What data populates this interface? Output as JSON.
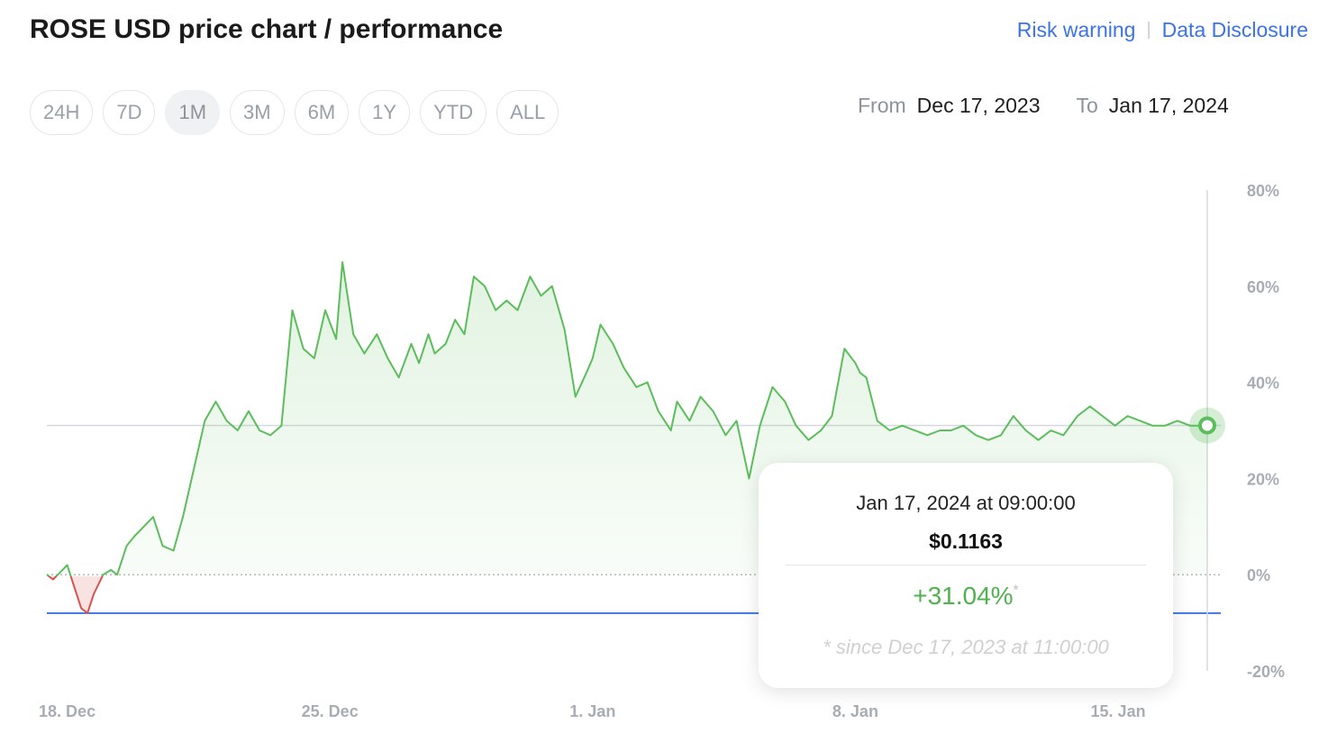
{
  "header": {
    "title": "ROSE USD price chart / performance",
    "risk_link": "Risk warning",
    "separator": "|",
    "disclosure_link": "Data Disclosure"
  },
  "ranges": [
    {
      "label": "24H",
      "active": false
    },
    {
      "label": "7D",
      "active": false
    },
    {
      "label": "1M",
      "active": true
    },
    {
      "label": "3M",
      "active": false
    },
    {
      "label": "6M",
      "active": false
    },
    {
      "label": "1Y",
      "active": false
    },
    {
      "label": "YTD",
      "active": false
    },
    {
      "label": "ALL",
      "active": false
    }
  ],
  "daterange": {
    "from_label": "From",
    "from_value": "Dec 17, 2023",
    "to_label": "To",
    "to_value": "Jan 17, 2024"
  },
  "tooltip": {
    "date": "Jan 17, 2024 at 09:00:00",
    "price": "$0.1163",
    "change": "+31.04%",
    "asterisk": "*",
    "since": "* since Dec 17, 2023 at 11:00:00"
  },
  "colors": {
    "up": "#5cbd5c",
    "down": "#d9534f",
    "up_fill": "#e9f6e9",
    "down_fill": "#f7dcdb",
    "low_line": "#3b73e8",
    "grid": "#d5d8dc",
    "axis_text": "#a8adb3",
    "link": "#3b73e8"
  },
  "chart_data": {
    "type": "line",
    "title": "",
    "xlabel": "",
    "ylabel": "",
    "x_start": "2023-12-17 11:00",
    "x_end": "2024-01-17 09:00",
    "x_ticks": [
      {
        "label": "18. Dec",
        "date": "2023-12-18"
      },
      {
        "label": "25. Dec",
        "date": "2023-12-25"
      },
      {
        "label": "1. Jan",
        "date": "2024-01-01"
      },
      {
        "label": "8. Jan",
        "date": "2024-01-08"
      },
      {
        "label": "15. Jan",
        "date": "2024-01-15"
      }
    ],
    "y_ticks": [
      {
        "label": "80%",
        "value": 80
      },
      {
        "label": "60%",
        "value": 60
      },
      {
        "label": "40%",
        "value": 40
      },
      {
        "label": "20%",
        "value": 20
      },
      {
        "label": "0%",
        "value": 0
      },
      {
        "label": "-20%",
        "value": -20
      }
    ],
    "ylim": [
      -20,
      80
    ],
    "current_level": 31.04,
    "low_level": -8,
    "series": [
      {
        "x": [
          "2023-12-17 11:00",
          "2023-12-17 15:00",
          "2023-12-17 21:00",
          "2023-12-18 00:00",
          "2023-12-18 05:00",
          "2023-12-18 09:00",
          "2023-12-18 13:00",
          "2023-12-18 17:00",
          "2023-12-18 23:00",
          "2023-12-19 04:00",
          "2023-12-19 08:00",
          "2023-12-19 14:00",
          "2023-12-19 19:00",
          "2023-12-20 01:00",
          "2023-12-20 07:00",
          "2023-12-20 13:00",
          "2023-12-20 20:00",
          "2023-12-21 02:00",
          "2023-12-21 09:00",
          "2023-12-21 16:00",
          "2023-12-21 23:00",
          "2023-12-22 06:00",
          "2023-12-22 13:00",
          "2023-12-22 20:00",
          "2023-12-23 03:00",
          "2023-12-23 10:00",
          "2023-12-23 17:00",
          "2023-12-24 00:00",
          "2023-12-24 07:00",
          "2023-12-24 14:00",
          "2023-12-24 21:00",
          "2023-12-25 04:00",
          "2023-12-25 08:00",
          "2023-12-25 15:00",
          "2023-12-25 22:00",
          "2023-12-26 06:00",
          "2023-12-26 13:00",
          "2023-12-26 20:00",
          "2023-12-27 04:00",
          "2023-12-27 09:00",
          "2023-12-27 15:00",
          "2023-12-27 19:00",
          "2023-12-28 02:00",
          "2023-12-28 08:00",
          "2023-12-28 14:00",
          "2023-12-28 20:00",
          "2023-12-29 03:00",
          "2023-12-29 10:00",
          "2023-12-29 17:00",
          "2023-12-30 00:00",
          "2023-12-30 08:00",
          "2023-12-30 15:00",
          "2023-12-30 22:00",
          "2023-12-31 06:00",
          "2023-12-31 13:00",
          "2023-12-31 20:00",
          "2024-01-01 00:00",
          "2024-01-01 05:00",
          "2024-01-01 13:00",
          "2024-01-01 20:00",
          "2024-01-02 04:00",
          "2024-01-02 11:00",
          "2024-01-02 18:00",
          "2024-01-03 02:00",
          "2024-01-03 06:00",
          "2024-01-03 14:00",
          "2024-01-03 21:00",
          "2024-01-04 05:00",
          "2024-01-04 13:00",
          "2024-01-04 20:00",
          "2024-01-05 04:00",
          "2024-01-05 11:00",
          "2024-01-05 19:00",
          "2024-01-06 03:00",
          "2024-01-06 10:00",
          "2024-01-06 18:00",
          "2024-01-07 02:00",
          "2024-01-07 09:00",
          "2024-01-07 17:00",
          "2024-01-08 00:00",
          "2024-01-08 03:00",
          "2024-01-08 07:00",
          "2024-01-08 14:00",
          "2024-01-08 22:00",
          "2024-01-09 06:00",
          "2024-01-09 14:00",
          "2024-01-09 22:00",
          "2024-01-10 06:00",
          "2024-01-10 13:00",
          "2024-01-10 21:00",
          "2024-01-11 05:00",
          "2024-01-11 13:00",
          "2024-01-11 21:00",
          "2024-01-12 05:00",
          "2024-01-12 13:00",
          "2024-01-12 21:00",
          "2024-01-13 05:00",
          "2024-01-13 13:00",
          "2024-01-13 22:00",
          "2024-01-14 06:00",
          "2024-01-14 14:00",
          "2024-01-14 22:00",
          "2024-01-15 06:00",
          "2024-01-15 14:00",
          "2024-01-15 22:00",
          "2024-01-16 06:00",
          "2024-01-16 14:00",
          "2024-01-16 22:00",
          "2024-01-17 04:00",
          "2024-01-17 09:00"
        ],
        "values": [
          0,
          -1,
          1,
          2,
          -3,
          -7,
          -8,
          -4,
          0,
          1,
          0,
          6,
          8,
          10,
          12,
          6,
          5,
          12,
          22,
          32,
          36,
          32,
          30,
          34,
          30,
          29,
          31,
          55,
          47,
          45,
          55,
          49,
          65,
          50,
          46,
          50,
          45,
          41,
          48,
          44,
          50,
          46,
          48,
          53,
          50,
          62,
          60,
          55,
          57,
          55,
          62,
          58,
          60,
          51,
          37,
          42,
          45,
          52,
          48,
          43,
          39,
          40,
          34,
          30,
          36,
          32,
          37,
          34,
          29,
          32,
          20,
          31,
          39,
          36,
          31,
          28,
          30,
          33,
          47,
          44,
          42,
          41,
          32,
          30,
          31,
          30,
          29,
          30,
          30,
          31,
          29,
          28,
          29,
          33,
          30,
          28,
          30,
          29,
          33,
          35,
          33,
          31,
          33,
          32,
          31,
          31,
          32,
          31,
          31,
          31.04
        ]
      }
    ]
  }
}
